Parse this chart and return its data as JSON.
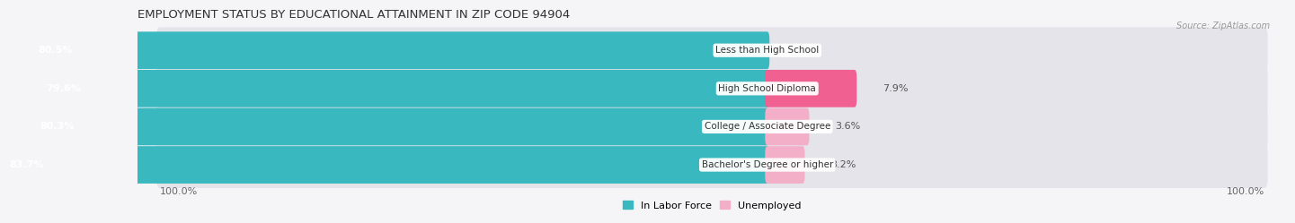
{
  "title": "EMPLOYMENT STATUS BY EDUCATIONAL ATTAINMENT IN ZIP CODE 94904",
  "source": "Source: ZipAtlas.com",
  "categories": [
    "Less than High School",
    "High School Diploma",
    "College / Associate Degree",
    "Bachelor's Degree or higher"
  ],
  "in_labor_force": [
    80.5,
    79.6,
    80.3,
    83.7
  ],
  "unemployed": [
    0.0,
    7.9,
    3.6,
    3.2
  ],
  "labor_color": "#3ab8c0",
  "unemployed_color_0": "#f4afc8",
  "unemployed_color_1": "#f06090",
  "unemployed_color_2": "#f4afc8",
  "unemployed_color_3": "#f4afc8",
  "bar_bg_color": "#e4e4ea",
  "background_color": "#f5f5f8",
  "x_left_label": "100.0%",
  "x_right_label": "100.0%",
  "title_fontsize": 9.5,
  "label_fontsize": 8,
  "cat_fontsize": 7.5,
  "source_fontsize": 7,
  "bar_height": 0.62,
  "pivot": 55.0,
  "total_width": 100.0
}
